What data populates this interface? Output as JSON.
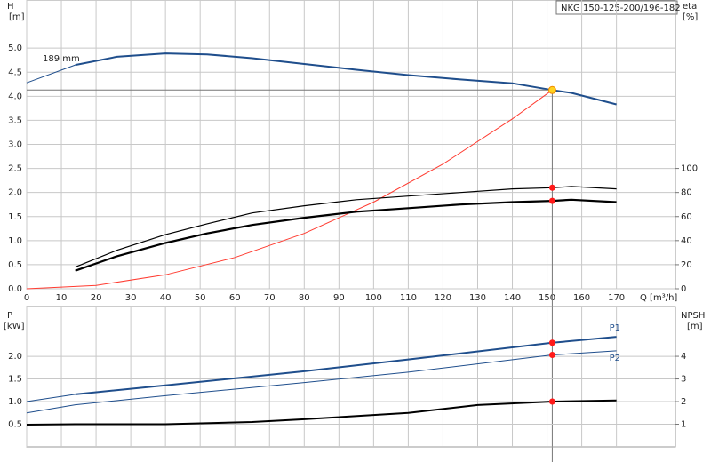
{
  "chart_data": [
    {
      "type": "line",
      "title": "NKG 150-125-200/196-182",
      "xlabel": "Q [m³/h]",
      "ylabel": "H",
      "yunit": "[m]",
      "y2label": "eta",
      "y2unit": "[%]",
      "annotation": "189 mm",
      "xlim": [
        0,
        187
      ],
      "ylim": [
        0,
        6
      ],
      "y2lim": [
        0,
        240
      ],
      "xticks": [
        0,
        10,
        20,
        30,
        40,
        50,
        60,
        70,
        80,
        90,
        100,
        110,
        120,
        130,
        140,
        150,
        160,
        170
      ],
      "yticks": [
        {
          "value": 0,
          "label": "0.0"
        },
        0.5,
        {
          "value": 1,
          "label": "1.0"
        },
        1.5,
        {
          "value": 2,
          "label": "2.0"
        },
        2.5,
        {
          "value": 3,
          "label": "3.0"
        },
        3.5,
        {
          "value": 4,
          "label": "4.0"
        },
        4.5,
        {
          "value": 5,
          "label": "5.0"
        }
      ],
      "y2ticks": [
        0,
        20,
        40,
        60,
        80,
        100
      ],
      "grid": true,
      "series": [
        {
          "color": "#1f4e8c",
          "width": 1,
          "x": [
            0,
            14
          ],
          "values": [
            4.28,
            4.65
          ]
        },
        {
          "color": "#1f4e8c",
          "width": 2,
          "x": [
            14,
            26,
            40,
            52,
            65,
            80,
            95,
            110,
            125,
            140,
            151.5,
            157,
            170
          ],
          "values": [
            4.65,
            4.82,
            4.89,
            4.87,
            4.79,
            4.67,
            4.55,
            4.44,
            4.35,
            4.27,
            4.13,
            4.07,
            3.83
          ]
        },
        {
          "color": "#ff3b30",
          "width": 1,
          "x": [
            0,
            20,
            40,
            60,
            80,
            100,
            120,
            140,
            151.5
          ],
          "values": [
            0,
            0.07,
            0.29,
            0.65,
            1.15,
            1.8,
            2.59,
            3.53,
            4.13
          ]
        },
        {
          "color": "#000000",
          "width": 1.2,
          "axis": "y2",
          "x": [
            14,
            26,
            40,
            52,
            65,
            80,
            95,
            110,
            125,
            140,
            151.5,
            157,
            170
          ],
          "values": [
            18,
            32,
            45,
            54,
            63,
            69,
            74,
            77,
            80,
            83,
            84,
            85,
            83
          ]
        },
        {
          "color": "#000000",
          "width": 2.2,
          "axis": "y2",
          "x": [
            14,
            26,
            40,
            52,
            65,
            80,
            95,
            110,
            125,
            140,
            151.5,
            157,
            170
          ],
          "values": [
            15,
            27,
            38,
            46,
            53,
            59,
            64,
            67,
            70,
            72,
            73,
            74,
            72
          ]
        },
        {
          "marker": true,
          "color": "#ffd21f",
          "x": [
            151.5
          ],
          "values": [
            4.13
          ]
        },
        {
          "marker": true,
          "color": "#ff1a1a",
          "axis": "y2",
          "x": [
            151.5,
            151.5
          ],
          "values": [
            84,
            73
          ]
        }
      ]
    },
    {
      "type": "line",
      "ylabel": "P",
      "yunit": "[kW]",
      "y2label": "NPSH",
      "y2unit": "[m]",
      "xlim": [
        0,
        187
      ],
      "ylim": [
        0,
        3.1
      ],
      "y2lim": [
        0,
        6.2
      ],
      "xticks": [
        0,
        10,
        20,
        30,
        40,
        50,
        60,
        70,
        80,
        90,
        100,
        110,
        120,
        130,
        140,
        150,
        160,
        170
      ],
      "yticks": [
        0.5,
        {
          "value": 1,
          "label": "1.0"
        },
        1.5,
        {
          "value": 2,
          "label": "2.0"
        }
      ],
      "y2ticks": [
        1,
        2,
        3,
        4
      ],
      "grid": true,
      "series": [
        {
          "color": "#1f4e8c",
          "width": 1,
          "x": [
            0,
            14
          ],
          "values": [
            1.0,
            1.16
          ]
        },
        {
          "name": "P1",
          "color": "#1f4e8c",
          "width": 2,
          "x": [
            14,
            40,
            80,
            110,
            151.5,
            170
          ],
          "values": [
            1.16,
            1.36,
            1.67,
            1.93,
            2.3,
            2.43
          ]
        },
        {
          "name": "P2",
          "color": "#1f4e8c",
          "width": 1,
          "x": [
            0,
            14,
            40,
            80,
            110,
            151.5,
            170
          ],
          "values": [
            0.75,
            0.93,
            1.13,
            1.42,
            1.65,
            2.03,
            2.12
          ]
        },
        {
          "color": "#000000",
          "width": 2,
          "axis": "y2",
          "x": [
            0,
            14,
            40,
            65,
            80,
            110,
            130,
            151.5,
            170
          ],
          "values": [
            0.98,
            1.0,
            1.0,
            1.1,
            1.22,
            1.5,
            1.85,
            2.0,
            2.05
          ]
        },
        {
          "marker": true,
          "color": "#ff1a1a",
          "x": [
            151.5,
            151.5
          ],
          "values": [
            2.3,
            2.03
          ]
        },
        {
          "marker": true,
          "color": "#ff1a1a",
          "axis": "y2",
          "x": [
            151.5
          ],
          "values": [
            2.0
          ]
        }
      ]
    }
  ]
}
